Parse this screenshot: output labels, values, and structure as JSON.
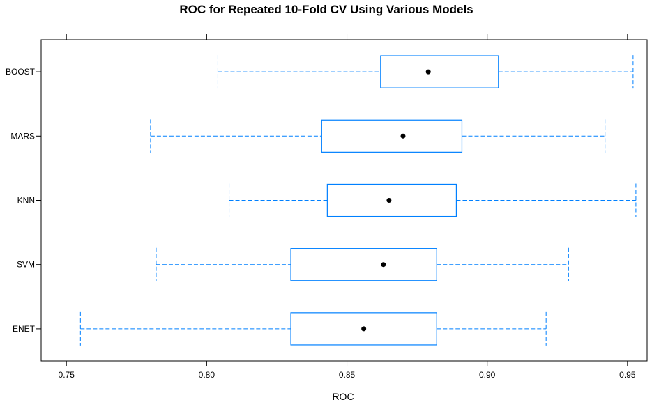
{
  "chart_data": {
    "type": "boxplot",
    "title": "ROC for Repeated 10-Fold CV Using Various Models",
    "xlabel": "ROC",
    "ylabel": "",
    "xlim": [
      0.741,
      0.957
    ],
    "xticks": [
      "0.75",
      "0.80",
      "0.85",
      "0.90",
      "0.95"
    ],
    "xtick_values": [
      0.75,
      0.8,
      0.85,
      0.9,
      0.95
    ],
    "grid": false,
    "categories": [
      "BOOST",
      "MARS",
      "KNN",
      "SVM",
      "ENET"
    ],
    "series": [
      {
        "name": "BOOST",
        "min": 0.804,
        "q1": 0.862,
        "median": 0.879,
        "q3": 0.904,
        "max": 0.952
      },
      {
        "name": "MARS",
        "min": 0.78,
        "q1": 0.841,
        "median": 0.87,
        "q3": 0.891,
        "max": 0.942
      },
      {
        "name": "KNN",
        "min": 0.808,
        "q1": 0.843,
        "median": 0.865,
        "q3": 0.889,
        "max": 0.953
      },
      {
        "name": "SVM",
        "min": 0.782,
        "q1": 0.83,
        "median": 0.863,
        "q3": 0.882,
        "max": 0.929
      },
      {
        "name": "ENET",
        "min": 0.755,
        "q1": 0.83,
        "median": 0.856,
        "q3": 0.882,
        "max": 0.921
      }
    ],
    "colors": {
      "box": "#0080ff",
      "median": "#000000",
      "axis": "#000000"
    }
  }
}
